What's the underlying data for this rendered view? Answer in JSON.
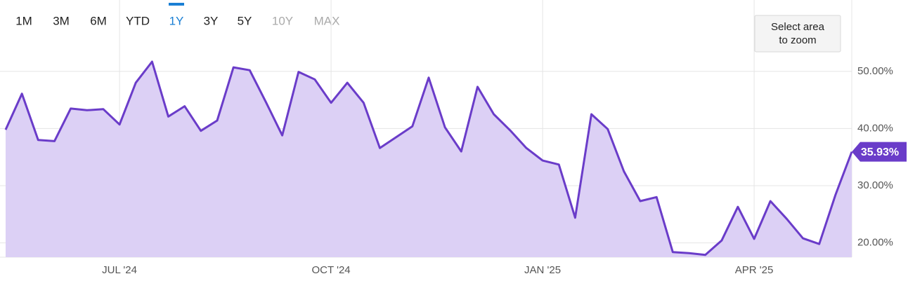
{
  "toolbar": [
    {
      "label": "1M",
      "state": "normal"
    },
    {
      "label": "3M",
      "state": "normal"
    },
    {
      "label": "6M",
      "state": "normal"
    },
    {
      "label": "YTD",
      "state": "normal"
    },
    {
      "label": "1Y",
      "state": "active"
    },
    {
      "label": "3Y",
      "state": "normal"
    },
    {
      "label": "5Y",
      "state": "normal"
    },
    {
      "label": "10Y",
      "state": "disabled"
    },
    {
      "label": "MAX",
      "state": "disabled"
    }
  ],
  "zoom_button": [
    "Select area",
    "to zoom"
  ],
  "chart_data": {
    "type": "area",
    "categories": [
      null,
      null,
      null,
      null,
      null,
      null,
      null,
      "JUL '24",
      null,
      null,
      null,
      null,
      null,
      null,
      null,
      null,
      null,
      null,
      null,
      null,
      "OCT '24",
      null,
      null,
      null,
      null,
      null,
      null,
      null,
      null,
      null,
      null,
      null,
      null,
      "JAN '25",
      null,
      null,
      null,
      null,
      null,
      null,
      null,
      null,
      null,
      null,
      null,
      null,
      "APR '25",
      null,
      null,
      null,
      null,
      null,
      null
    ],
    "series": [
      {
        "color": "#6a3cc9",
        "fill": "#dcd0f5",
        "values": [
          39.8,
          46.1,
          38.0,
          37.8,
          43.5,
          43.2,
          43.4,
          40.7,
          48.0,
          51.7,
          42.1,
          43.9,
          39.6,
          41.4,
          50.7,
          50.2,
          44.6,
          38.8,
          49.9,
          48.6,
          44.5,
          48.0,
          44.5,
          36.6,
          38.5,
          40.4,
          48.9,
          40.2,
          36.0,
          47.3,
          42.5,
          39.7,
          36.6,
          34.4,
          33.7,
          24.4,
          42.5,
          39.9,
          32.5,
          27.3,
          28.0,
          18.4,
          18.2,
          17.9,
          20.4,
          26.3,
          20.7,
          27.3,
          24.2,
          20.8,
          19.8,
          28.4,
          35.93
        ],
        "value_labels": [
          null,
          null,
          null,
          null,
          null,
          null,
          null,
          null,
          null,
          null,
          null,
          null,
          null,
          null,
          null,
          null,
          null,
          null,
          null,
          null,
          null,
          null,
          null,
          null,
          null,
          null,
          null,
          null,
          null,
          null,
          null,
          null,
          null,
          null,
          null,
          null,
          null,
          null,
          null,
          null,
          null,
          null,
          null,
          null,
          null,
          null,
          null,
          null,
          null,
          null,
          null,
          null,
          "35.93%"
        ]
      }
    ],
    "ylim": [
      17.5,
      61.5
    ],
    "yticks": [
      {
        "value": 20,
        "label": "20.00%"
      },
      {
        "value": 30,
        "label": "30.00%"
      },
      {
        "value": 40,
        "label": "40.00%"
      },
      {
        "value": 50,
        "label": "50.00%"
      }
    ],
    "grid": true
  }
}
